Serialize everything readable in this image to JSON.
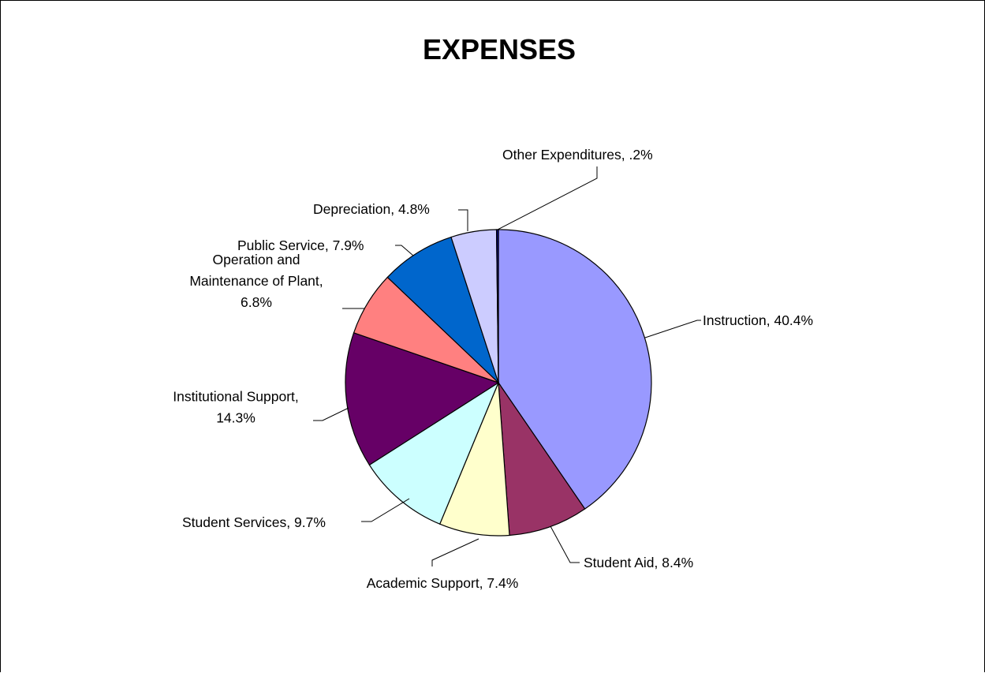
{
  "chart_data": {
    "type": "pie",
    "title": "EXPENSES",
    "unit": "%",
    "slices": [
      {
        "label": "Instruction, 40.4%",
        "value": 40.4,
        "color": "#9999FF"
      },
      {
        "label": "Student Aid, 8.4%",
        "value": 8.4,
        "color": "#993366"
      },
      {
        "label": "Academic Support, 7.4%",
        "value": 7.4,
        "color": "#FFFFCC"
      },
      {
        "label": "Student Services, 9.7%",
        "value": 9.7,
        "color": "#CCFFFF"
      },
      {
        "label": "Institutional Support, 14.3%",
        "value": 14.3,
        "color": "#660066"
      },
      {
        "label": "Operation and Maintenance of Plant, 6.8%",
        "value": 6.8,
        "color": "#FF8080"
      },
      {
        "label": "Public Service, 7.9%",
        "value": 7.9,
        "color": "#0066CC"
      },
      {
        "label": "Depreciation, 4.8%",
        "value": 4.8,
        "color": "#CCCCFF"
      },
      {
        "label": "Other Expenditures, .2%",
        "value": 0.2,
        "color": "#000080"
      }
    ],
    "start_angle": "12 o'clock",
    "direction": "clockwise",
    "legend": "none"
  }
}
